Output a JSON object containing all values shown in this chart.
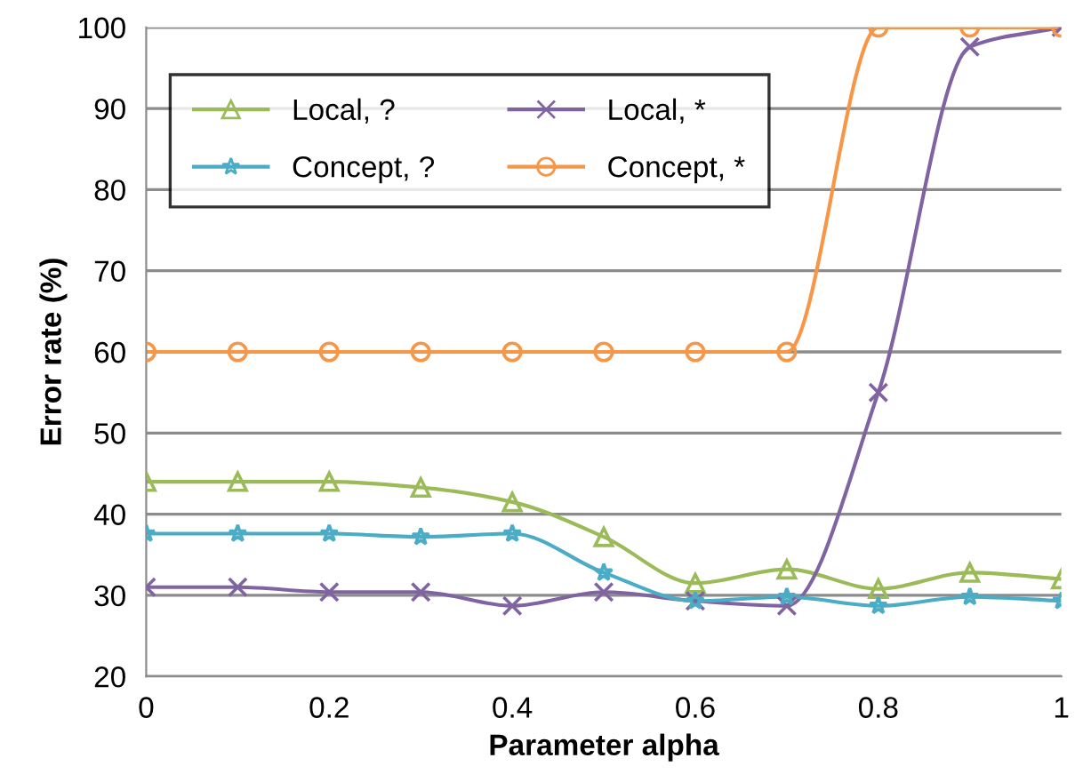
{
  "chart_data": {
    "type": "line",
    "xlabel": "Parameter alpha",
    "ylabel": "Error rate (%)",
    "x": [
      0,
      0.1,
      0.2,
      0.3,
      0.4,
      0.5,
      0.6,
      0.7,
      0.8,
      0.9,
      1
    ],
    "xlim": [
      0,
      1
    ],
    "xticks": [
      0,
      0.2,
      0.4,
      0.6,
      0.8,
      1
    ],
    "ylim": [
      20,
      100
    ],
    "yticks": [
      20,
      30,
      40,
      50,
      60,
      70,
      80,
      90,
      100
    ],
    "grid": "y",
    "legend": "top left",
    "series": [
      {
        "name": "Local, ?",
        "color": "#9bbb59",
        "marker": "triangle",
        "values": [
          44,
          44,
          44,
          43.3,
          41.5,
          37.2,
          31.5,
          33.2,
          30.8,
          32.8,
          32
        ]
      },
      {
        "name": "Local, *",
        "color": "#8064a2",
        "marker": "cross",
        "values": [
          31,
          31,
          30.4,
          30.4,
          28.7,
          30.4,
          29.3,
          28.7,
          55,
          97.6,
          100
        ]
      },
      {
        "name": "Concept, ?",
        "color": "#4bacc6",
        "marker": "star",
        "values": [
          37.6,
          37.6,
          37.6,
          37.2,
          37.6,
          32.8,
          29.3,
          29.8,
          28.7,
          29.8,
          29.3
        ]
      },
      {
        "name": "Concept, *",
        "color": "#f79646",
        "marker": "circle",
        "values": [
          60,
          60,
          60,
          60,
          60,
          60,
          60,
          60,
          100,
          100,
          100
        ]
      }
    ]
  }
}
